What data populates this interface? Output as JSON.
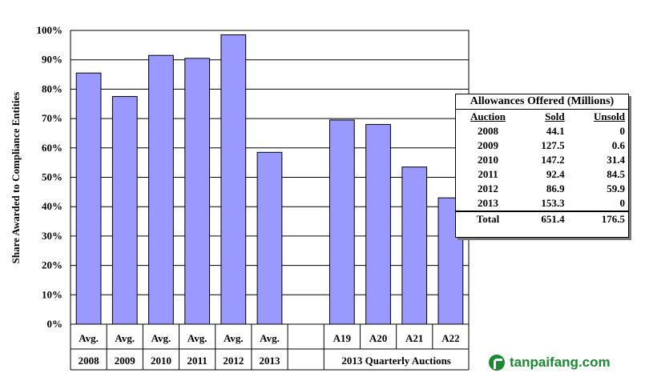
{
  "chart_data": {
    "type": "bar",
    "ylabel": "Share Awarded to Compliance Entities",
    "ylim": [
      0,
      100
    ],
    "yticks": [
      "0%",
      "10%",
      "20%",
      "30%",
      "40%",
      "50%",
      "60%",
      "70%",
      "80%",
      "90%",
      "100%"
    ],
    "grid": true,
    "categories": [
      {
        "line1": "Avg.",
        "line2": "2008"
      },
      {
        "line1": "Avg.",
        "line2": "2009"
      },
      {
        "line1": "Avg.",
        "line2": "2010"
      },
      {
        "line1": "Avg.",
        "line2": "2011"
      },
      {
        "line1": "Avg.",
        "line2": "2012"
      },
      {
        "line1": "Avg.",
        "line2": "2013"
      },
      {
        "line1": "",
        "line2": ""
      },
      {
        "line1": "A19",
        "line2": ""
      },
      {
        "line1": "A20",
        "line2": ""
      },
      {
        "line1": "A21",
        "line2": ""
      },
      {
        "line1": "A22",
        "line2": ""
      }
    ],
    "values": [
      85.5,
      77.5,
      91.5,
      90.5,
      98.5,
      58.5,
      null,
      69.5,
      68,
      53.5,
      43
    ],
    "group_label": "2013 Quarterly Auctions",
    "bar_color": "#9999ff"
  },
  "inset_table": {
    "title": "Allowances Offered (Millions)",
    "headers": [
      "Auction",
      "Sold",
      "Unsold"
    ],
    "rows": [
      [
        "2008",
        "44.1",
        "0"
      ],
      [
        "2009",
        "127.5",
        "0.6"
      ],
      [
        "2010",
        "147.2",
        "31.4"
      ],
      [
        "2011",
        "92.4",
        "84.5"
      ],
      [
        "2012",
        "86.9",
        "59.9"
      ],
      [
        "2013",
        "153.3",
        "0"
      ]
    ],
    "total": [
      "Total",
      "651.4",
      "176.5"
    ]
  },
  "watermark": {
    "text": "tanpaifang.com",
    "color": "#1a8a2e"
  }
}
